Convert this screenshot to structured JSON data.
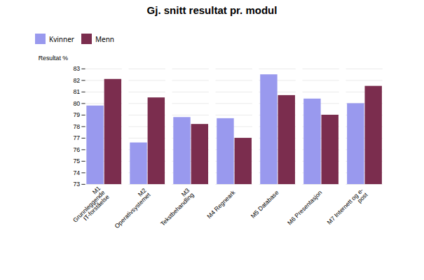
{
  "chart_data": {
    "type": "bar",
    "title": "Gj. snitt resultat pr. modul",
    "ylabel": "Resultat %",
    "categories": [
      "M1\nGrunnleggende\nIT-forståelse",
      "M2\nOperativsystemet",
      "M3\nTekstbehandling",
      "M4 Regneark",
      "M5 Database",
      "M6 Presentasjon",
      "M7 Internett og e-\npost"
    ],
    "series": [
      {
        "name": "Kvinner",
        "color": "#9999ee",
        "values": [
          79.8,
          76.6,
          78.8,
          78.7,
          82.5,
          80.4,
          80.0
        ]
      },
      {
        "name": "Menn",
        "color": "#7b2d4e",
        "values": [
          82.1,
          80.5,
          78.2,
          77.0,
          80.7,
          79.0,
          81.5
        ]
      }
    ],
    "ylim": [
      73,
      83
    ],
    "yticks": [
      73,
      74,
      75,
      76,
      77,
      78,
      79,
      80,
      81,
      82,
      83
    ],
    "grid": true
  }
}
